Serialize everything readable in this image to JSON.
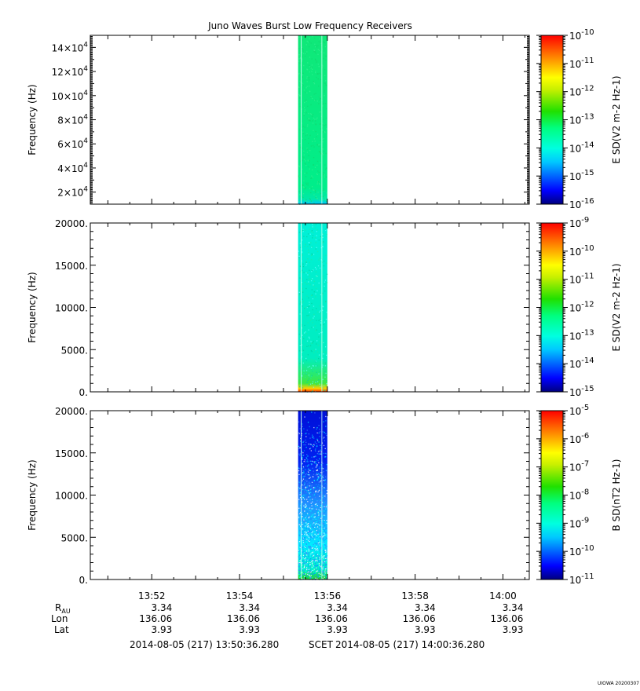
{
  "figure": {
    "title": "Juno Waves Burst Low Frequency Receivers",
    "stamp": "UIOWA 20200307",
    "ephemeris_labels": [
      "R_AU",
      "Lon",
      "Lat"
    ],
    "ephemeris": {
      "R_AU": [
        "3.34",
        "3.34",
        "3.34",
        "3.34",
        "3.34"
      ],
      "Lon": [
        "136.06",
        "136.06",
        "136.06",
        "136.06",
        "136.06"
      ],
      "Lat": [
        "3.93",
        "3.93",
        "3.93",
        "3.93",
        "3.93"
      ]
    },
    "time_range": {
      "start": "2014-08-05 (217) 13:50:36.280",
      "label": "SCET",
      "end": "2014-08-05 (217) 14:00:36.280"
    }
  },
  "chart_data": [
    {
      "type": "heatmap",
      "title": "Juno Waves Burst Low Frequency Receivers",
      "xlabel": "",
      "ylabel": "Frequency (Hz)",
      "x_ticks": [
        "13:52",
        "13:54",
        "13:56",
        "13:58",
        "14:00"
      ],
      "x_range": [
        "13:50:36",
        "14:00:36"
      ],
      "y_ticks": [
        "2×10^4",
        "4×10^4",
        "6×10^4",
        "8×10^4",
        "10×10^4",
        "12×10^4",
        "14×10^4"
      ],
      "y_tick_labels": [
        {
          "base": "2",
          "exp": "4"
        },
        {
          "base": "4",
          "exp": "4"
        },
        {
          "base": "6",
          "exp": "4"
        },
        {
          "base": "8",
          "exp": "4"
        },
        {
          "base": "10",
          "exp": "4"
        },
        {
          "base": "12",
          "exp": "4"
        },
        {
          "base": "14",
          "exp": "4"
        }
      ],
      "ylim": [
        10000,
        150000
      ],
      "colorbar_label": "E SD(V2 m-2 Hz-1)",
      "colorbar_ticks": [
        "10^-16",
        "10^-15",
        "10^-14",
        "10^-13",
        "10^-12",
        "10^-11",
        "10^-10"
      ],
      "colorbar_exponents": [
        "-16",
        "-15",
        "-14",
        "-13",
        "-12",
        "-11",
        "-10"
      ],
      "data_interval": [
        "13:55:20",
        "13:56:00"
      ],
      "dominant_level": "10^-13.7",
      "low_frequency_level": "10^-15.2"
    },
    {
      "type": "heatmap",
      "xlabel": "",
      "ylabel": "Frequency (Hz)",
      "x_ticks": [
        "13:52",
        "13:54",
        "13:56",
        "13:58",
        "14:00"
      ],
      "y_ticks": [
        "0.",
        "5000.",
        "10000.",
        "15000.",
        "20000."
      ],
      "ylim": [
        0,
        20000
      ],
      "colorbar_label": "E SD(V2 m-2 Hz-1)",
      "colorbar_ticks": [
        "10^-15",
        "10^-14",
        "10^-13",
        "10^-12",
        "10^-11",
        "10^-10",
        "10^-9"
      ],
      "colorbar_exponents": [
        "-15",
        "-14",
        "-13",
        "-12",
        "-11",
        "-10",
        "-9"
      ],
      "data_interval": [
        "13:55:20",
        "13:56:00"
      ],
      "dominant_level": "10^-13.4",
      "low_frequency_level": "10^-11.5"
    },
    {
      "type": "heatmap",
      "xlabel": "",
      "ylabel": "Frequency (Hz)",
      "x_ticks": [
        "13:52",
        "13:54",
        "13:56",
        "13:58",
        "14:00"
      ],
      "y_ticks": [
        "0.",
        "5000.",
        "10000.",
        "15000.",
        "20000."
      ],
      "ylim": [
        0,
        20000
      ],
      "colorbar_label": "B SD(nT2 Hz-1)",
      "colorbar_ticks": [
        "10^-11",
        "10^-10",
        "10^-9",
        "10^-8",
        "10^-7",
        "10^-6",
        "10^-5"
      ],
      "colorbar_exponents": [
        "-11",
        "-10",
        "-9",
        "-8",
        "-7",
        "-6",
        "-5"
      ],
      "data_interval": [
        "13:55:20",
        "13:56:00"
      ],
      "dominant_level": "10^-10.3",
      "low_frequency_level": "10^-8.3"
    }
  ]
}
